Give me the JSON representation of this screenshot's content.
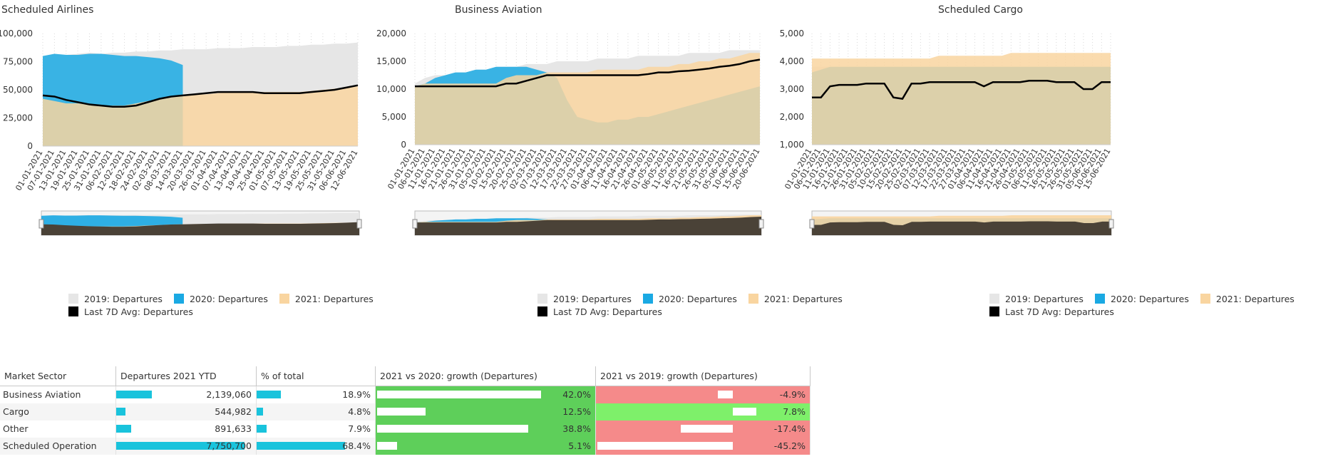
{
  "colors": {
    "y2019": "#e6e6e6",
    "y2020": "#1aa9e3",
    "y2021": "#f9d5a0",
    "overlap": "#cbc2a0",
    "avg": "#000000",
    "bar": "#19c3dc",
    "green": "#5ecf5a",
    "lightgreen": "#7ef06a",
    "red": "#f58a8a"
  },
  "legend": {
    "y2019": "2019: Departures",
    "y2020": "2020: Departures",
    "y2021": "2021: Departures",
    "avg": "Last 7D Avg: Departures"
  },
  "chart_data": [
    {
      "type": "area",
      "title": "Scheduled Airlines",
      "ylim": [
        0,
        100000
      ],
      "yticks": [
        "0",
        "25,000",
        "50,000",
        "75,000",
        "100,000"
      ],
      "x": [
        "01-01-2021",
        "07-01-2021",
        "13-01-2021",
        "19-01-2021",
        "25-01-2021",
        "31-01-2021",
        "06-02-2021",
        "12-02-2021",
        "18-02-2021",
        "24-02-2021",
        "02-03-2021",
        "08-03-2021",
        "14-03-2021",
        "20-03-2021",
        "26-03-2021",
        "01-04-2021",
        "07-04-2021",
        "13-04-2021",
        "19-04-2021",
        "25-04-2021",
        "01-05-2021",
        "07-05-2021",
        "13-05-2021",
        "19-05-2021",
        "25-05-2021",
        "31-05-2021",
        "06-06-2021",
        "12-06-2021"
      ],
      "series": [
        {
          "name": "2019: Departures",
          "values": [
            80000,
            82000,
            81000,
            82000,
            83000,
            82000,
            83000,
            83000,
            84000,
            84000,
            85000,
            85000,
            86000,
            86000,
            86000,
            87000,
            87000,
            87000,
            88000,
            88000,
            88000,
            89000,
            89000,
            90000,
            90000,
            91000,
            91000,
            92000
          ]
        },
        {
          "name": "2020: Departures",
          "values": [
            80000,
            82000,
            81000,
            81000,
            82000,
            82000,
            81000,
            80000,
            80000,
            79000,
            78000,
            76000,
            72000,
            null,
            null,
            null,
            null,
            null,
            null,
            null,
            null,
            null,
            null,
            null,
            null,
            null,
            null,
            null
          ]
        },
        {
          "name": "2021: Departures",
          "values": [
            42000,
            40000,
            38000,
            38000,
            37000,
            36000,
            36000,
            36000,
            38000,
            40000,
            42000,
            44000,
            45000,
            46000,
            46000,
            47000,
            48000,
            48000,
            48000,
            48000,
            48000,
            48000,
            48000,
            49000,
            50000,
            51000,
            52000,
            53000
          ]
        },
        {
          "name": "Last 7D Avg: Departures",
          "values": [
            45000,
            44000,
            41000,
            39000,
            37000,
            36000,
            35000,
            35000,
            36000,
            39000,
            42000,
            44000,
            45000,
            46000,
            47000,
            48000,
            48000,
            48000,
            48000,
            47000,
            47000,
            47000,
            47000,
            48000,
            49000,
            50000,
            52000,
            54000
          ]
        }
      ]
    },
    {
      "type": "area",
      "title": "Business Aviation",
      "ylim": [
        0,
        20000
      ],
      "yticks": [
        "0",
        "5,000",
        "10,000",
        "15,000",
        "20,000"
      ],
      "x": [
        "01-01-2021",
        "06-01-2021",
        "11-01-2021",
        "16-01-2021",
        "21-01-2021",
        "26-01-2021",
        "31-01-2021",
        "05-02-2021",
        "10-02-2021",
        "15-02-2021",
        "20-02-2021",
        "25-02-2021",
        "02-03-2021",
        "07-03-2021",
        "12-03-2021",
        "17-03-2021",
        "22-03-2021",
        "27-03-2021",
        "01-04-2021",
        "06-04-2021",
        "11-04-2021",
        "16-04-2021",
        "21-04-2021",
        "26-04-2021",
        "01-05-2021",
        "06-05-2021",
        "11-05-2021",
        "16-05-2021",
        "21-05-2021",
        "26-05-2021",
        "31-05-2021",
        "05-06-2021",
        "10-06-2021",
        "15-06-2021",
        "20-06-2021"
      ],
      "series": [
        {
          "name": "2019: Departures",
          "values": [
            11000,
            12000,
            12500,
            12500,
            13000,
            13000,
            13500,
            13500,
            14000,
            14000,
            14000,
            14500,
            14500,
            14500,
            15000,
            15000,
            15000,
            15000,
            15500,
            15500,
            15500,
            15500,
            16000,
            16000,
            16000,
            16000,
            16000,
            16500,
            16500,
            16500,
            16500,
            17000,
            17000,
            17000,
            17000
          ]
        },
        {
          "name": "2020: Departures",
          "values": [
            10500,
            11000,
            12000,
            12500,
            13000,
            13000,
            13500,
            13500,
            14000,
            14000,
            14000,
            14000,
            13500,
            13000,
            12000,
            8000,
            5000,
            4500,
            4000,
            4000,
            4500,
            4500,
            5000,
            5000,
            5500,
            6000,
            6500,
            7000,
            7500,
            8000,
            8500,
            9000,
            9500,
            10000,
            10500
          ]
        },
        {
          "name": "2021: Departures",
          "values": [
            10500,
            11000,
            11000,
            11000,
            11000,
            11000,
            11000,
            11000,
            11000,
            12000,
            12500,
            12500,
            12500,
            13000,
            13000,
            13000,
            13000,
            13000,
            13500,
            13500,
            13500,
            13500,
            13500,
            14000,
            14000,
            14000,
            14500,
            14500,
            15000,
            15000,
            15500,
            15500,
            16000,
            16500,
            16500
          ]
        },
        {
          "name": "Last 7D Avg: Departures",
          "values": [
            10500,
            10500,
            10500,
            10500,
            10500,
            10500,
            10500,
            10500,
            10500,
            11000,
            11000,
            11500,
            12000,
            12500,
            12500,
            12500,
            12500,
            12500,
            12500,
            12500,
            12500,
            12500,
            12500,
            12700,
            13000,
            13000,
            13200,
            13300,
            13500,
            13700,
            14000,
            14200,
            14500,
            15000,
            15300
          ]
        }
      ]
    },
    {
      "type": "area",
      "title": "Scheduled Cargo",
      "ylim": [
        1000,
        5000
      ],
      "yticks": [
        "1,000",
        "2,000",
        "3,000",
        "4,000",
        "5,000"
      ],
      "x": [
        "01-01-2021",
        "06-01-2021",
        "11-01-2021",
        "16-01-2021",
        "21-01-2021",
        "26-01-2021",
        "31-01-2021",
        "05-02-2021",
        "10-02-2021",
        "15-02-2021",
        "20-02-2021",
        "25-02-2021",
        "02-03-2021",
        "07-03-2021",
        "12-03-2021",
        "17-03-2021",
        "22-03-2021",
        "27-03-2021",
        "01-04-2021",
        "06-04-2021",
        "11-04-2021",
        "16-04-2021",
        "21-04-2021",
        "26-04-2021",
        "01-05-2021",
        "06-05-2021",
        "11-05-2021",
        "16-05-2021",
        "21-05-2021",
        "26-05-2021",
        "31-05-2021",
        "05-06-2021",
        "10-06-2021",
        "15-06-2021"
      ],
      "series": [
        {
          "name": "2019: Departures",
          "values": [
            3800,
            3800,
            3800,
            3800,
            3800,
            3800,
            3800,
            3800,
            3800,
            3800,
            3800,
            3800,
            3800,
            3800,
            3800,
            3800,
            3800,
            3800,
            3800,
            3800,
            3800,
            3800,
            3800,
            3800,
            3800,
            3800,
            3800,
            3800,
            3800,
            3800,
            3800,
            3800,
            3800,
            3800
          ]
        },
        {
          "name": "2020: Departures",
          "values": [
            3600,
            3700,
            3800,
            3800,
            3800,
            3800,
            3800,
            3800,
            3800,
            3800,
            3800,
            3800,
            3800,
            3800,
            3800,
            3800,
            3800,
            3800,
            3800,
            3800,
            3800,
            3800,
            3800,
            3800,
            3800,
            3800,
            3800,
            3800,
            3800,
            3800,
            3800,
            3800,
            3800,
            3800
          ]
        },
        {
          "name": "2021: Departures",
          "values": [
            4100,
            4100,
            4100,
            4100,
            4100,
            4100,
            4100,
            4100,
            4100,
            4100,
            4100,
            4100,
            4100,
            4100,
            4200,
            4200,
            4200,
            4200,
            4200,
            4200,
            4200,
            4200,
            4300,
            4300,
            4300,
            4300,
            4300,
            4300,
            4300,
            4300,
            4300,
            4300,
            4300,
            4300
          ]
        },
        {
          "name": "Last 7D Avg: Departures",
          "values": [
            2700,
            2700,
            3100,
            3150,
            3150,
            3150,
            3200,
            3200,
            3200,
            2700,
            2650,
            3200,
            3200,
            3250,
            3250,
            3250,
            3250,
            3250,
            3250,
            3100,
            3250,
            3250,
            3250,
            3250,
            3300,
            3300,
            3300,
            3250,
            3250,
            3250,
            3000,
            3000,
            3250,
            3250
          ]
        }
      ]
    },
    {
      "type": "table",
      "columns": [
        "Market Sector",
        "Departures 2021 YTD",
        "% of total",
        "2021 vs 2020: growth (Departures)",
        "2021 vs 2019: growth (Departures)"
      ],
      "rows": [
        {
          "sector": "Business Aviation",
          "departures": "2,139,060",
          "dep_value": 2139060,
          "pct": "18.9%",
          "pct_value": 18.9,
          "g2020": "42.0%",
          "g2020_value": 42.0,
          "g2019": "-4.9%",
          "g2019_value": -4.9
        },
        {
          "sector": "Cargo",
          "departures": "544,982",
          "dep_value": 544982,
          "pct": "4.8%",
          "pct_value": 4.8,
          "g2020": "12.5%",
          "g2020_value": 12.5,
          "g2019": "7.8%",
          "g2019_value": 7.8
        },
        {
          "sector": "Other",
          "departures": "891,633",
          "dep_value": 891633,
          "pct": "7.9%",
          "pct_value": 7.9,
          "g2020": "38.8%",
          "g2020_value": 38.8,
          "g2019": "-17.4%",
          "g2019_value": -17.4
        },
        {
          "sector": "Scheduled Operation",
          "departures": "7,750,700",
          "dep_value": 7750700,
          "pct": "68.4%",
          "pct_value": 68.4,
          "g2020": "5.1%",
          "g2020_value": 5.1,
          "g2019": "-45.2%",
          "g2019_value": -45.2
        }
      ]
    }
  ]
}
